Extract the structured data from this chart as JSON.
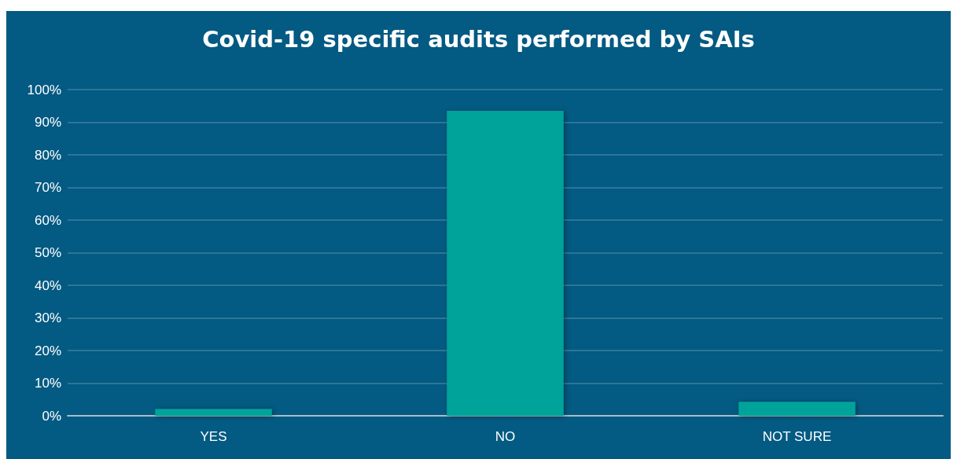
{
  "chart_data": {
    "type": "bar",
    "title": "Covid-19 specific audits performed by SAIs",
    "categories": [
      "YES",
      "NO",
      "NOT SURE"
    ],
    "values": [
      2.1,
      93.5,
      4.3
    ],
    "color": "#00a39a",
    "ylim": [
      0,
      100
    ],
    "yticks": [
      {
        "value": 0,
        "label": "0%"
      },
      {
        "value": 10,
        "label": "10%"
      },
      {
        "value": 20,
        "label": "20%"
      },
      {
        "value": 30,
        "label": "30%"
      },
      {
        "value": 40,
        "label": "40%"
      },
      {
        "value": 50,
        "label": "50%"
      },
      {
        "value": 60,
        "label": "60%"
      },
      {
        "value": 70,
        "label": "70%"
      },
      {
        "value": 80,
        "label": "80%"
      },
      {
        "value": 90,
        "label": "90%"
      },
      {
        "value": 100,
        "label": "100%"
      }
    ],
    "grid": "y"
  }
}
